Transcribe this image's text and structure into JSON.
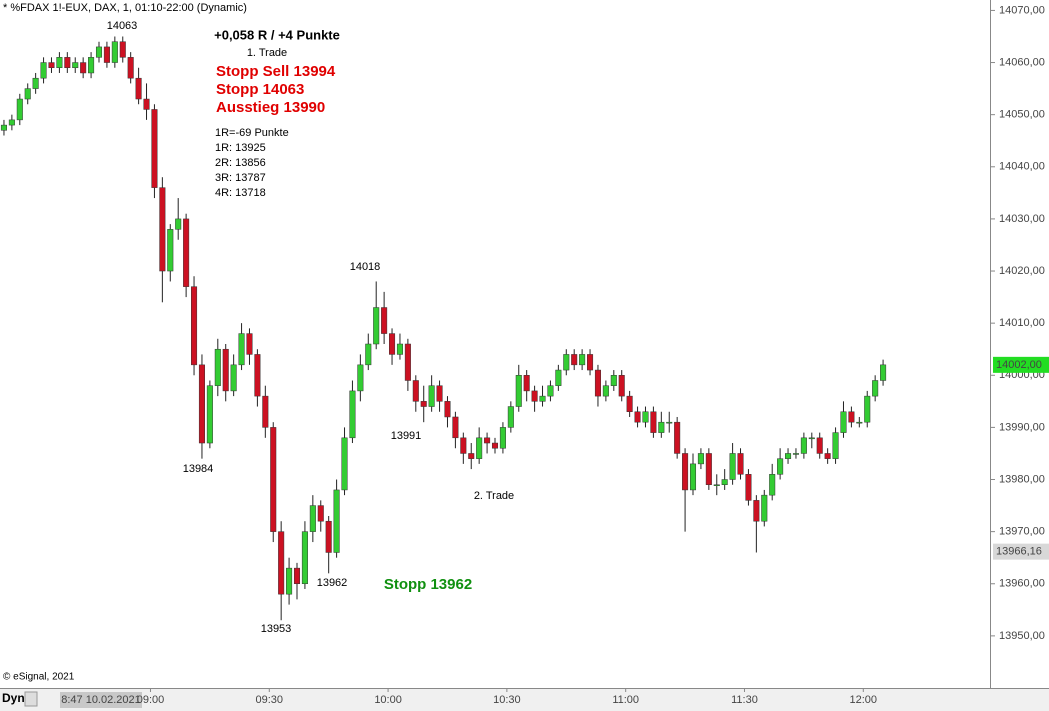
{
  "chart_data": {
    "type": "candlestick",
    "title": "* %FDAX 1!-EUX, DAX, 1, 01:10-22:00 (Dynamic)",
    "up_color": "#33cc33",
    "down_color": "#cc1122",
    "ylim": [
      13940,
      14072
    ],
    "yticks": [
      {
        "value": 14070,
        "label": "14070,00"
      },
      {
        "value": 14060,
        "label": "14060,00"
      },
      {
        "value": 14050,
        "label": "14050,00"
      },
      {
        "value": 14040,
        "label": "14040,00"
      },
      {
        "value": 14030,
        "label": "14030,00"
      },
      {
        "value": 14020,
        "label": "14020,00"
      },
      {
        "value": 14010,
        "label": "14010,00"
      },
      {
        "value": 14000,
        "label": "14000,00"
      },
      {
        "value": 13990,
        "label": "13990,00"
      },
      {
        "value": 13980,
        "label": "13980,00"
      },
      {
        "value": 13970,
        "label": "13970,00"
      },
      {
        "value": 13960,
        "label": "13960,00"
      },
      {
        "value": 13950,
        "label": "13950,00"
      }
    ],
    "xlim": [
      "08:22",
      "12:32"
    ],
    "xticks": [
      "09:00",
      "09:30",
      "10:00",
      "10:30",
      "11:00",
      "11:30",
      "12:00"
    ],
    "price_labels": [
      {
        "value": 14002,
        "label": "14002,00",
        "color": "#22dd22"
      },
      {
        "value": 13966.16,
        "label": "13966,16",
        "color": "#d8d8d8"
      }
    ],
    "x": [
      "08:23",
      "08:25",
      "08:27",
      "08:29",
      "08:31",
      "08:33",
      "08:35",
      "08:37",
      "08:39",
      "08:41",
      "08:43",
      "08:45",
      "08:47",
      "08:49",
      "08:51",
      "08:53",
      "08:55",
      "08:57",
      "08:59",
      "09:01",
      "09:03",
      "09:05",
      "09:07",
      "09:09",
      "09:11",
      "09:13",
      "09:15",
      "09:17",
      "09:19",
      "09:21",
      "09:23",
      "09:25",
      "09:27",
      "09:29",
      "09:31",
      "09:33",
      "09:35",
      "09:37",
      "09:39",
      "09:41",
      "09:43",
      "09:45",
      "09:47",
      "09:49",
      "09:51",
      "09:53",
      "09:55",
      "09:57",
      "09:59",
      "10:01",
      "10:03",
      "10:05",
      "10:07",
      "10:09",
      "10:11",
      "10:13",
      "10:15",
      "10:17",
      "10:19",
      "10:21",
      "10:23",
      "10:25",
      "10:27",
      "10:29",
      "10:31",
      "10:33",
      "10:35",
      "10:37",
      "10:39",
      "10:41",
      "10:43",
      "10:45",
      "10:47",
      "10:49",
      "10:51",
      "10:53",
      "10:55",
      "10:57",
      "10:59",
      "11:01",
      "11:03",
      "11:05",
      "11:07",
      "11:09",
      "11:11",
      "11:13",
      "11:15",
      "11:17",
      "11:19",
      "11:21",
      "11:23",
      "11:25",
      "11:27",
      "11:29",
      "11:31",
      "11:33",
      "11:35",
      "11:37",
      "11:39",
      "11:41",
      "11:43",
      "11:45",
      "11:47",
      "11:49",
      "11:51",
      "11:53",
      "11:55",
      "11:57",
      "11:59",
      "12:01",
      "12:03",
      "12:05"
    ],
    "ohlc": [
      [
        14047,
        14049,
        14046,
        14048
      ],
      [
        14048,
        14050,
        14047,
        14049
      ],
      [
        14049,
        14054,
        14048,
        14053
      ],
      [
        14053,
        14056,
        14052,
        14055
      ],
      [
        14055,
        14058,
        14054,
        14057
      ],
      [
        14057,
        14061,
        14056,
        14060
      ],
      [
        14060,
        14061,
        14058,
        14059
      ],
      [
        14059,
        14062,
        14058,
        14061
      ],
      [
        14061,
        14062,
        14058,
        14059
      ],
      [
        14059,
        14061,
        14058,
        14060
      ],
      [
        14060,
        14061,
        14057,
        14058
      ],
      [
        14058,
        14062,
        14057,
        14061
      ],
      [
        14061,
        14064,
        14060,
        14063
      ],
      [
        14063,
        14064,
        14059,
        14060
      ],
      [
        14060,
        14065,
        14059,
        14064
      ],
      [
        14064,
        14065,
        14060,
        14061
      ],
      [
        14061,
        14062,
        14056,
        14057
      ],
      [
        14057,
        14059,
        14052,
        14053
      ],
      [
        14053,
        14056,
        14049,
        14051
      ],
      [
        14051,
        14052,
        14034,
        14036
      ],
      [
        14036,
        14038,
        14014,
        14020
      ],
      [
        14020,
        14029,
        14018,
        14028
      ],
      [
        14028,
        14034,
        14026,
        14030
      ],
      [
        14030,
        14031,
        14015,
        14017
      ],
      [
        14017,
        14019,
        14000,
        14002
      ],
      [
        14002,
        14004,
        13984,
        13987
      ],
      [
        13987,
        13999,
        13986,
        13998
      ],
      [
        13998,
        14007,
        13996,
        14005
      ],
      [
        14005,
        14006,
        13995,
        13997
      ],
      [
        13997,
        14004,
        13996,
        14002
      ],
      [
        14002,
        14010,
        14001,
        14008
      ],
      [
        14008,
        14009,
        14002,
        14004
      ],
      [
        14004,
        14005,
        13994,
        13996
      ],
      [
        13996,
        13998,
        13988,
        13990
      ],
      [
        13990,
        13991,
        13968,
        13970
      ],
      [
        13970,
        13972,
        13953,
        13958
      ],
      [
        13958,
        13965,
        13956,
        13963
      ],
      [
        13963,
        13964,
        13957,
        13960
      ],
      [
        13960,
        13972,
        13959,
        13970
      ],
      [
        13970,
        13977,
        13968,
        13975
      ],
      [
        13975,
        13976,
        13970,
        13972
      ],
      [
        13972,
        13973,
        13962,
        13966
      ],
      [
        13966,
        13980,
        13965,
        13978
      ],
      [
        13978,
        13990,
        13977,
        13988
      ],
      [
        13988,
        13999,
        13987,
        13997
      ],
      [
        13997,
        14004,
        13995,
        14002
      ],
      [
        14002,
        14008,
        14001,
        14006
      ],
      [
        14006,
        14018,
        14005,
        14013
      ],
      [
        14013,
        14016,
        14006,
        14008
      ],
      [
        14008,
        14009,
        14002,
        14004
      ],
      [
        14004,
        14008,
        14003,
        14006
      ],
      [
        14006,
        14007,
        13997,
        13999
      ],
      [
        13999,
        14000,
        13993,
        13995
      ],
      [
        13995,
        13998,
        13991,
        13994
      ],
      [
        13994,
        14000,
        13993,
        13998
      ],
      [
        13998,
        13999,
        13993,
        13995
      ],
      [
        13995,
        13996,
        13990,
        13992
      ],
      [
        13992,
        13993,
        13986,
        13988
      ],
      [
        13988,
        13989,
        13983,
        13985
      ],
      [
        13985,
        13987,
        13982,
        13984
      ],
      [
        13984,
        13990,
        13983,
        13988
      ],
      [
        13988,
        13989,
        13985,
        13987
      ],
      [
        13987,
        13988,
        13985,
        13986
      ],
      [
        13986,
        13991,
        13985,
        13990
      ],
      [
        13990,
        13995,
        13989,
        13994
      ],
      [
        13994,
        14002,
        13993,
        14000
      ],
      [
        14000,
        14001,
        13995,
        13997
      ],
      [
        13997,
        13998,
        13993,
        13995
      ],
      [
        13995,
        13998,
        13994,
        13996
      ],
      [
        13996,
        13999,
        13995,
        13998
      ],
      [
        13998,
        14002,
        13997,
        14001
      ],
      [
        14001,
        14005,
        14000,
        14004
      ],
      [
        14004,
        14005,
        14001,
        14002
      ],
      [
        14002,
        14005,
        14001,
        14004
      ],
      [
        14004,
        14005,
        14000,
        14001
      ],
      [
        14001,
        14002,
        13994,
        13996
      ],
      [
        13996,
        13999,
        13995,
        13998
      ],
      [
        13998,
        14001,
        13997,
        14000
      ],
      [
        14000,
        14001,
        13995,
        13996
      ],
      [
        13996,
        13997,
        13992,
        13993
      ],
      [
        13993,
        13994,
        13990,
        13991
      ],
      [
        13991,
        13994,
        13990,
        13993
      ],
      [
        13993,
        13994,
        13988,
        13989
      ],
      [
        13989,
        13993,
        13988,
        13991
      ],
      [
        13991,
        13993,
        13989,
        13991
      ],
      [
        13991,
        13992,
        13984,
        13985
      ],
      [
        13985,
        13986,
        13970,
        13978
      ],
      [
        13978,
        13985,
        13977,
        13983
      ],
      [
        13983,
        13986,
        13982,
        13985
      ],
      [
        13985,
        13986,
        13978,
        13979
      ],
      [
        13979,
        13981,
        13977,
        13979
      ],
      [
        13979,
        13982,
        13978,
        13980
      ],
      [
        13980,
        13987,
        13979,
        13985
      ],
      [
        13985,
        13986,
        13980,
        13981
      ],
      [
        13981,
        13982,
        13975,
        13976
      ],
      [
        13976,
        13977,
        13966,
        13972
      ],
      [
        13972,
        13978,
        13971,
        13977
      ],
      [
        13977,
        13983,
        13976,
        13981
      ],
      [
        13981,
        13986,
        13980,
        13984
      ],
      [
        13984,
        13986,
        13983,
        13985
      ],
      [
        13985,
        13986,
        13984,
        13985
      ],
      [
        13985,
        13989,
        13984,
        13988
      ],
      [
        13988,
        13989,
        13986,
        13988
      ],
      [
        13988,
        13989,
        13984,
        13985
      ],
      [
        13985,
        13986,
        13983,
        13984
      ],
      [
        13984,
        13990,
        13983,
        13989
      ],
      [
        13989,
        13995,
        13988,
        13993
      ],
      [
        13993,
        13994,
        13990,
        13991
      ],
      [
        13991,
        13992,
        13990,
        13991
      ],
      [
        13991,
        13997,
        13990,
        13996
      ],
      [
        13996,
        14000,
        13995,
        13999
      ],
      [
        13999,
        14003,
        13998,
        14002
      ]
    ],
    "annotations": [
      "14063",
      "+0,058 R / +4 Punkte",
      "1. Trade",
      "Stopp Sell 13994",
      "Stopp 14063",
      "Ausstieg 13990",
      "1R=-69 Punkte",
      "1R: 13925",
      "2R: 13856",
      "3R: 13787",
      "4R: 13718",
      "14018",
      "13984",
      "13991",
      "2. Trade",
      "13962",
      "13953",
      "Stopp 13962",
      "© eSignal, 2021"
    ],
    "footer": {
      "mode": "Dyn",
      "cursor": "8:47 10.02.2021"
    }
  }
}
